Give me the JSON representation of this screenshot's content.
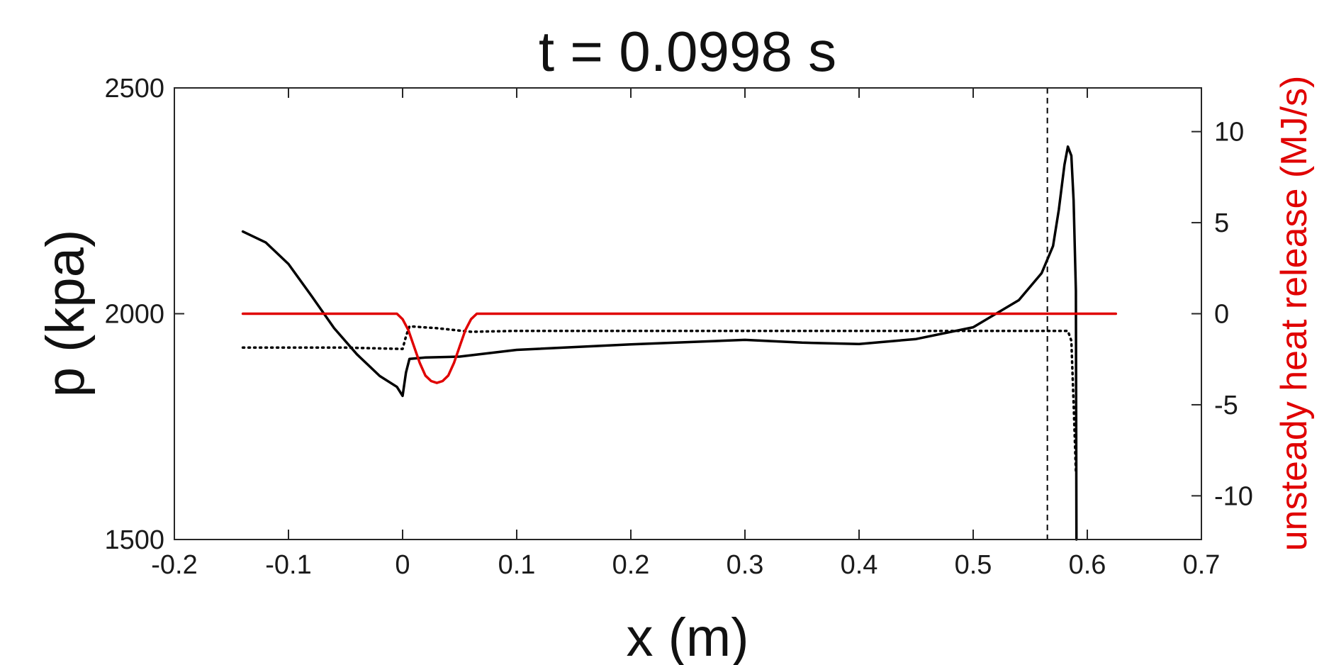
{
  "chart_data": {
    "type": "line",
    "title": "t = 0.0998 s",
    "xlabel": "x (m)",
    "ylabel_left": "p (kpa)",
    "ylabel_right": "unsteady heat release (MJ/s)",
    "xlim": [
      -0.2,
      0.7
    ],
    "ylim_left": [
      1500,
      2500
    ],
    "ylim_right": [
      -12.4,
      12.4
    ],
    "x_ticks": [
      "-0.2",
      "-0.1",
      "0",
      "0.1",
      "0.2",
      "0.3",
      "0.4",
      "0.5",
      "0.6",
      "0.7"
    ],
    "y_ticks_left": [
      "1500",
      "2000",
      "2500"
    ],
    "y_ticks_right": [
      "-10",
      "-5",
      "0",
      "5",
      "10"
    ],
    "grid": false,
    "colors": {
      "pressure": "#000000",
      "mean_pressure": "#000000",
      "heat_release": "#e00000",
      "marker": "#000000",
      "right_axis_label": "#e00000"
    },
    "vertical_marker_x": 0.565,
    "series": [
      {
        "key": "pressure",
        "axis": "left",
        "style": "solid",
        "points": [
          [
            -0.14,
            2182
          ],
          [
            -0.12,
            2158
          ],
          [
            -0.1,
            2110
          ],
          [
            -0.08,
            2040
          ],
          [
            -0.06,
            1968
          ],
          [
            -0.04,
            1910
          ],
          [
            -0.02,
            1862
          ],
          [
            -0.005,
            1838
          ],
          [
            0.0,
            1818
          ],
          [
            0.003,
            1870
          ],
          [
            0.006,
            1900
          ],
          [
            0.02,
            1903
          ],
          [
            0.05,
            1905
          ],
          [
            0.1,
            1920
          ],
          [
            0.2,
            1932
          ],
          [
            0.3,
            1942
          ],
          [
            0.35,
            1936
          ],
          [
            0.4,
            1933
          ],
          [
            0.45,
            1944
          ],
          [
            0.5,
            1970
          ],
          [
            0.54,
            2030
          ],
          [
            0.56,
            2090
          ],
          [
            0.57,
            2150
          ],
          [
            0.575,
            2230
          ],
          [
            0.58,
            2330
          ],
          [
            0.583,
            2370
          ],
          [
            0.586,
            2350
          ],
          [
            0.588,
            2250
          ],
          [
            0.59,
            2050
          ],
          [
            0.5905,
            1500
          ]
        ]
      },
      {
        "key": "mean_pressure",
        "axis": "left",
        "style": "dotted",
        "points": [
          [
            -0.14,
            1925
          ],
          [
            -0.05,
            1925
          ],
          [
            0.0,
            1922
          ],
          [
            0.003,
            1950
          ],
          [
            0.006,
            1972
          ],
          [
            0.03,
            1968
          ],
          [
            0.06,
            1960
          ],
          [
            0.1,
            1962
          ],
          [
            0.3,
            1962
          ],
          [
            0.5,
            1962
          ],
          [
            0.583,
            1962
          ],
          [
            0.586,
            1940
          ],
          [
            0.588,
            1800
          ],
          [
            0.59,
            1650
          ]
        ]
      },
      {
        "key": "heat_release",
        "axis": "right",
        "style": "solid",
        "points": [
          [
            -0.14,
            0
          ],
          [
            -0.005,
            0
          ],
          [
            0.0,
            -0.3
          ],
          [
            0.005,
            -0.9
          ],
          [
            0.01,
            -1.8
          ],
          [
            0.015,
            -2.7
          ],
          [
            0.02,
            -3.4
          ],
          [
            0.025,
            -3.7
          ],
          [
            0.03,
            -3.8
          ],
          [
            0.035,
            -3.7
          ],
          [
            0.04,
            -3.4
          ],
          [
            0.045,
            -2.7
          ],
          [
            0.05,
            -1.8
          ],
          [
            0.055,
            -0.9
          ],
          [
            0.06,
            -0.3
          ],
          [
            0.065,
            0
          ],
          [
            0.625,
            0
          ]
        ]
      }
    ]
  }
}
